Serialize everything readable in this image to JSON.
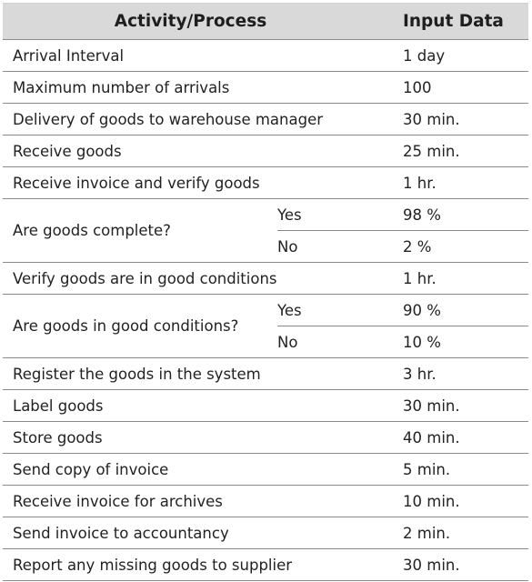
{
  "header": {
    "activity": "Activity/Process",
    "input": "Input Data"
  },
  "rows": [
    {
      "activity": "Arrival Interval",
      "value": "1 day"
    },
    {
      "activity": "Maximum number of arrivals",
      "value": "100"
    },
    {
      "activity": "Delivery of goods to warehouse manager",
      "value": "30 min."
    },
    {
      "activity": "Receive goods",
      "value": "25 min."
    },
    {
      "activity": "Receive invoice and verify goods",
      "value": "1 hr."
    },
    {
      "activity": "Are goods complete?",
      "options": [
        {
          "label": "Yes",
          "value": "98 %"
        },
        {
          "label": "No",
          "value": "2 %"
        }
      ]
    },
    {
      "activity": "Verify goods are in good conditions",
      "value": "1 hr."
    },
    {
      "activity": "Are goods in good conditions?",
      "options": [
        {
          "label": "Yes",
          "value": "90 %"
        },
        {
          "label": "No",
          "value": "10 %"
        }
      ]
    },
    {
      "activity": "Register the goods in the system",
      "value": "3 hr."
    },
    {
      "activity": "Label goods",
      "value": "30 min."
    },
    {
      "activity": "Store goods",
      "value": "40 min."
    },
    {
      "activity": "Send copy of invoice",
      "value": "5 min."
    },
    {
      "activity": "Receive invoice for archives",
      "value": "10 min."
    },
    {
      "activity": "Send invoice to accountancy",
      "value": "2 min."
    },
    {
      "activity": "Report any missing goods to supplier",
      "value": "30 min."
    }
  ]
}
